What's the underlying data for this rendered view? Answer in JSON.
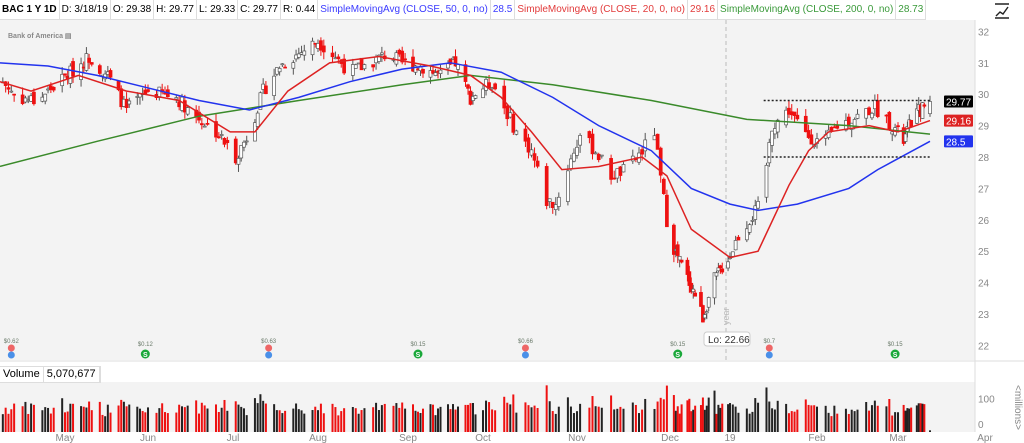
{
  "header": {
    "symbol": "BAC 1 Y 1D",
    "date": "D: 3/18/19",
    "open": "O: 29.38",
    "high": "H: 29.77",
    "low": "L: 29.33",
    "close": "C: 29.77",
    "range": "R: 0.44",
    "sma50_label": "SimpleMovingAvg (CLOSE, 50, 0, no)",
    "sma50_value": "28.5",
    "sma20_label": "SimpleMovingAvg (CLOSE, 20, 0, no)",
    "sma20_value": "29.16",
    "sma200_label": "SimpleMovingAvg (CLOSE, 200, 0, no)",
    "sma200_value": "28.73"
  },
  "logo_text": "Bank of America",
  "icon": "study-chart-icon",
  "volume": {
    "label": "Volume",
    "value": "5,070,677",
    "unit": "<millions>",
    "ticks": [
      "100",
      "0"
    ]
  },
  "low_callout": "Lo: 22.66",
  "year_marker": "year",
  "colors": {
    "up": "#ffffff",
    "down": "#ee1111",
    "sma50": "#2233ee",
    "sma20": "#dd2222",
    "sma200": "#3a8a2a",
    "last": "#000000"
  },
  "chart_data": {
    "type": "candlestick",
    "symbol": "BAC",
    "period": "1 Y",
    "interval": "1D",
    "ylim": [
      21.6,
      32.3
    ],
    "yticks": [
      22,
      23,
      24,
      25,
      26,
      27,
      28,
      29,
      30,
      31,
      32
    ],
    "xticks": [
      {
        "label": "May",
        "date": "2018-05-01"
      },
      {
        "label": "Jun",
        "date": "2018-06-01"
      },
      {
        "label": "Jul",
        "date": "2018-07-01"
      },
      {
        "label": "Aug",
        "date": "2018-08-01"
      },
      {
        "label": "Sep",
        "date": "2018-09-01"
      },
      {
        "label": "Oct",
        "date": "2018-10-01"
      },
      {
        "label": "Nov",
        "date": "2018-11-01"
      },
      {
        "label": "Dec",
        "date": "2018-12-01"
      },
      {
        "label": "19",
        "date": "2019-01-01"
      },
      {
        "label": "Feb",
        "date": "2019-02-01"
      },
      {
        "label": "Mar",
        "date": "2019-03-01"
      },
      {
        "label": "Apr",
        "date": "2019-04-01"
      }
    ],
    "close_path": [
      [
        "2018-04-09",
        30.4
      ],
      [
        "2018-04-14",
        29.9
      ],
      [
        "2018-04-21",
        29.8
      ],
      [
        "2018-04-29",
        30.4
      ],
      [
        "2018-05-10",
        31.2
      ],
      [
        "2018-05-17",
        30.6
      ],
      [
        "2018-05-24",
        29.5
      ],
      [
        "2018-06-01",
        30.1
      ],
      [
        "2018-06-11",
        29.9
      ],
      [
        "2018-06-18",
        29.3
      ],
      [
        "2018-06-25",
        28.8
      ],
      [
        "2018-07-02",
        28.0
      ],
      [
        "2018-07-07",
        28.8
      ],
      [
        "2018-07-12",
        30.1
      ],
      [
        "2018-07-18",
        30.9
      ],
      [
        "2018-07-25",
        31.3
      ],
      [
        "2018-08-01",
        31.7
      ],
      [
        "2018-08-07",
        31.2
      ],
      [
        "2018-08-12",
        30.7
      ],
      [
        "2018-08-19",
        31.0
      ],
      [
        "2018-08-25",
        31.3
      ],
      [
        "2018-08-30",
        31.0
      ],
      [
        "2018-09-06",
        30.9
      ],
      [
        "2018-09-14",
        30.6
      ],
      [
        "2018-09-20",
        31.0
      ],
      [
        "2018-09-26",
        29.9
      ],
      [
        "2018-10-04",
        30.4
      ],
      [
        "2018-10-07",
        29.8
      ],
      [
        "2018-10-12",
        28.8
      ],
      [
        "2018-10-17",
        28.2
      ],
      [
        "2018-10-22",
        26.6
      ],
      [
        "2018-10-25",
        26.5
      ],
      [
        "2018-10-28",
        27.4
      ],
      [
        "2018-11-02",
        28.7
      ],
      [
        "2018-11-07",
        28.2
      ],
      [
        "2018-11-12",
        27.4
      ],
      [
        "2018-11-17",
        27.6
      ],
      [
        "2018-11-22",
        28.2
      ],
      [
        "2018-11-26",
        28.8
      ],
      [
        "2018-11-28",
        27.3
      ],
      [
        "2018-11-30",
        26.0
      ],
      [
        "2018-12-03",
        25.1
      ],
      [
        "2018-12-08",
        24.4
      ],
      [
        "2018-12-15",
        23.5
      ],
      [
        "2018-12-18",
        22.9
      ],
      [
        "2018-12-24",
        24.1
      ],
      [
        "2019-01-01",
        24.9
      ],
      [
        "2019-01-04",
        25.5
      ],
      [
        "2019-01-08",
        26.0
      ],
      [
        "2019-01-12",
        26.5
      ],
      [
        "2019-01-16",
        29.0
      ],
      [
        "2019-01-22",
        29.5
      ],
      [
        "2019-01-27",
        28.8
      ],
      [
        "2019-02-03",
        28.4
      ],
      [
        "2019-02-08",
        29.0
      ],
      [
        "2019-02-15",
        29.3
      ],
      [
        "2019-02-21",
        29.6
      ],
      [
        "2019-02-26",
        29.1
      ],
      [
        "2019-03-04",
        28.5
      ],
      [
        "2019-03-09",
        29.3
      ],
      [
        "2019-03-18",
        29.77
      ]
    ],
    "sma50": [
      [
        "2018-04-08",
        31.0
      ],
      [
        "2018-04-25",
        30.9
      ],
      [
        "2018-05-13",
        30.6
      ],
      [
        "2018-06-01",
        30.2
      ],
      [
        "2018-06-19",
        29.8
      ],
      [
        "2018-07-07",
        29.5
      ],
      [
        "2018-07-25",
        29.9
      ],
      [
        "2018-08-12",
        30.4
      ],
      [
        "2018-08-30",
        30.8
      ],
      [
        "2018-09-18",
        31.0
      ],
      [
        "2018-10-07",
        30.7
      ],
      [
        "2018-10-24",
        29.9
      ],
      [
        "2018-11-08",
        29.0
      ],
      [
        "2018-11-25",
        28.2
      ],
      [
        "2018-12-12",
        27.0
      ],
      [
        "2019-01-01",
        26.5
      ],
      [
        "2019-01-11",
        26.3
      ],
      [
        "2019-01-25",
        26.5
      ],
      [
        "2019-02-12",
        27.0
      ],
      [
        "2019-02-22",
        27.6
      ],
      [
        "2019-03-18",
        28.5
      ]
    ],
    "sma20": [
      [
        "2018-04-08",
        30.4
      ],
      [
        "2018-04-19",
        30.1
      ],
      [
        "2018-05-06",
        30.6
      ],
      [
        "2018-05-24",
        30.1
      ],
      [
        "2018-06-12",
        29.8
      ],
      [
        "2018-06-30",
        28.8
      ],
      [
        "2018-07-09",
        28.8
      ],
      [
        "2018-07-21",
        30.1
      ],
      [
        "2018-08-05",
        31.0
      ],
      [
        "2018-08-22",
        31.2
      ],
      [
        "2018-09-10",
        30.9
      ],
      [
        "2018-09-26",
        30.6
      ],
      [
        "2018-10-07",
        29.9
      ],
      [
        "2018-10-17",
        28.8
      ],
      [
        "2018-10-27",
        27.6
      ],
      [
        "2018-11-08",
        27.7
      ],
      [
        "2018-11-22",
        28.0
      ],
      [
        "2018-11-30",
        27.4
      ],
      [
        "2018-12-12",
        25.7
      ],
      [
        "2019-01-01",
        24.8
      ],
      [
        "2019-01-11",
        25.0
      ],
      [
        "2019-01-22",
        27.1
      ],
      [
        "2019-01-29",
        28.2
      ],
      [
        "2019-02-05",
        28.8
      ],
      [
        "2019-02-19",
        29.0
      ],
      [
        "2019-03-01",
        28.8
      ],
      [
        "2019-03-18",
        29.16
      ]
    ],
    "sma200": [
      [
        "2018-04-08",
        27.7
      ],
      [
        "2018-05-13",
        28.5
      ],
      [
        "2018-06-19",
        29.3
      ],
      [
        "2018-07-25",
        29.8
      ],
      [
        "2018-08-30",
        30.3
      ],
      [
        "2018-09-26",
        30.6
      ],
      [
        "2018-10-24",
        30.3
      ],
      [
        "2018-11-25",
        29.8
      ],
      [
        "2019-01-07",
        29.2
      ],
      [
        "2019-02-12",
        29.0
      ],
      [
        "2019-03-18",
        28.73
      ]
    ],
    "range_box": {
      "high": 29.8,
      "low": 28.0,
      "start": "2019-01-13",
      "end": "2019-03-18"
    },
    "last_values": {
      "close": "29.77",
      "sma20": "29.16",
      "sma50": "28.5"
    },
    "events": [
      {
        "date": "2018-04-12",
        "type": "earnings",
        "label": "$0.62"
      },
      {
        "date": "2018-05-31",
        "type": "dividend",
        "label": "$0.12"
      },
      {
        "date": "2018-07-14",
        "type": "earnings",
        "label": "$0.63"
      },
      {
        "date": "2018-09-05",
        "type": "dividend",
        "label": "$0.15"
      },
      {
        "date": "2018-10-15",
        "type": "earnings",
        "label": "$0.66"
      },
      {
        "date": "2018-12-05",
        "type": "dividend",
        "label": "$0.15"
      },
      {
        "date": "2019-01-15",
        "type": "earnings",
        "label": "$0.7"
      },
      {
        "date": "2019-02-28",
        "type": "dividend",
        "label": "$0.15"
      }
    ],
    "volume_ylim": [
      0,
      150
    ]
  }
}
